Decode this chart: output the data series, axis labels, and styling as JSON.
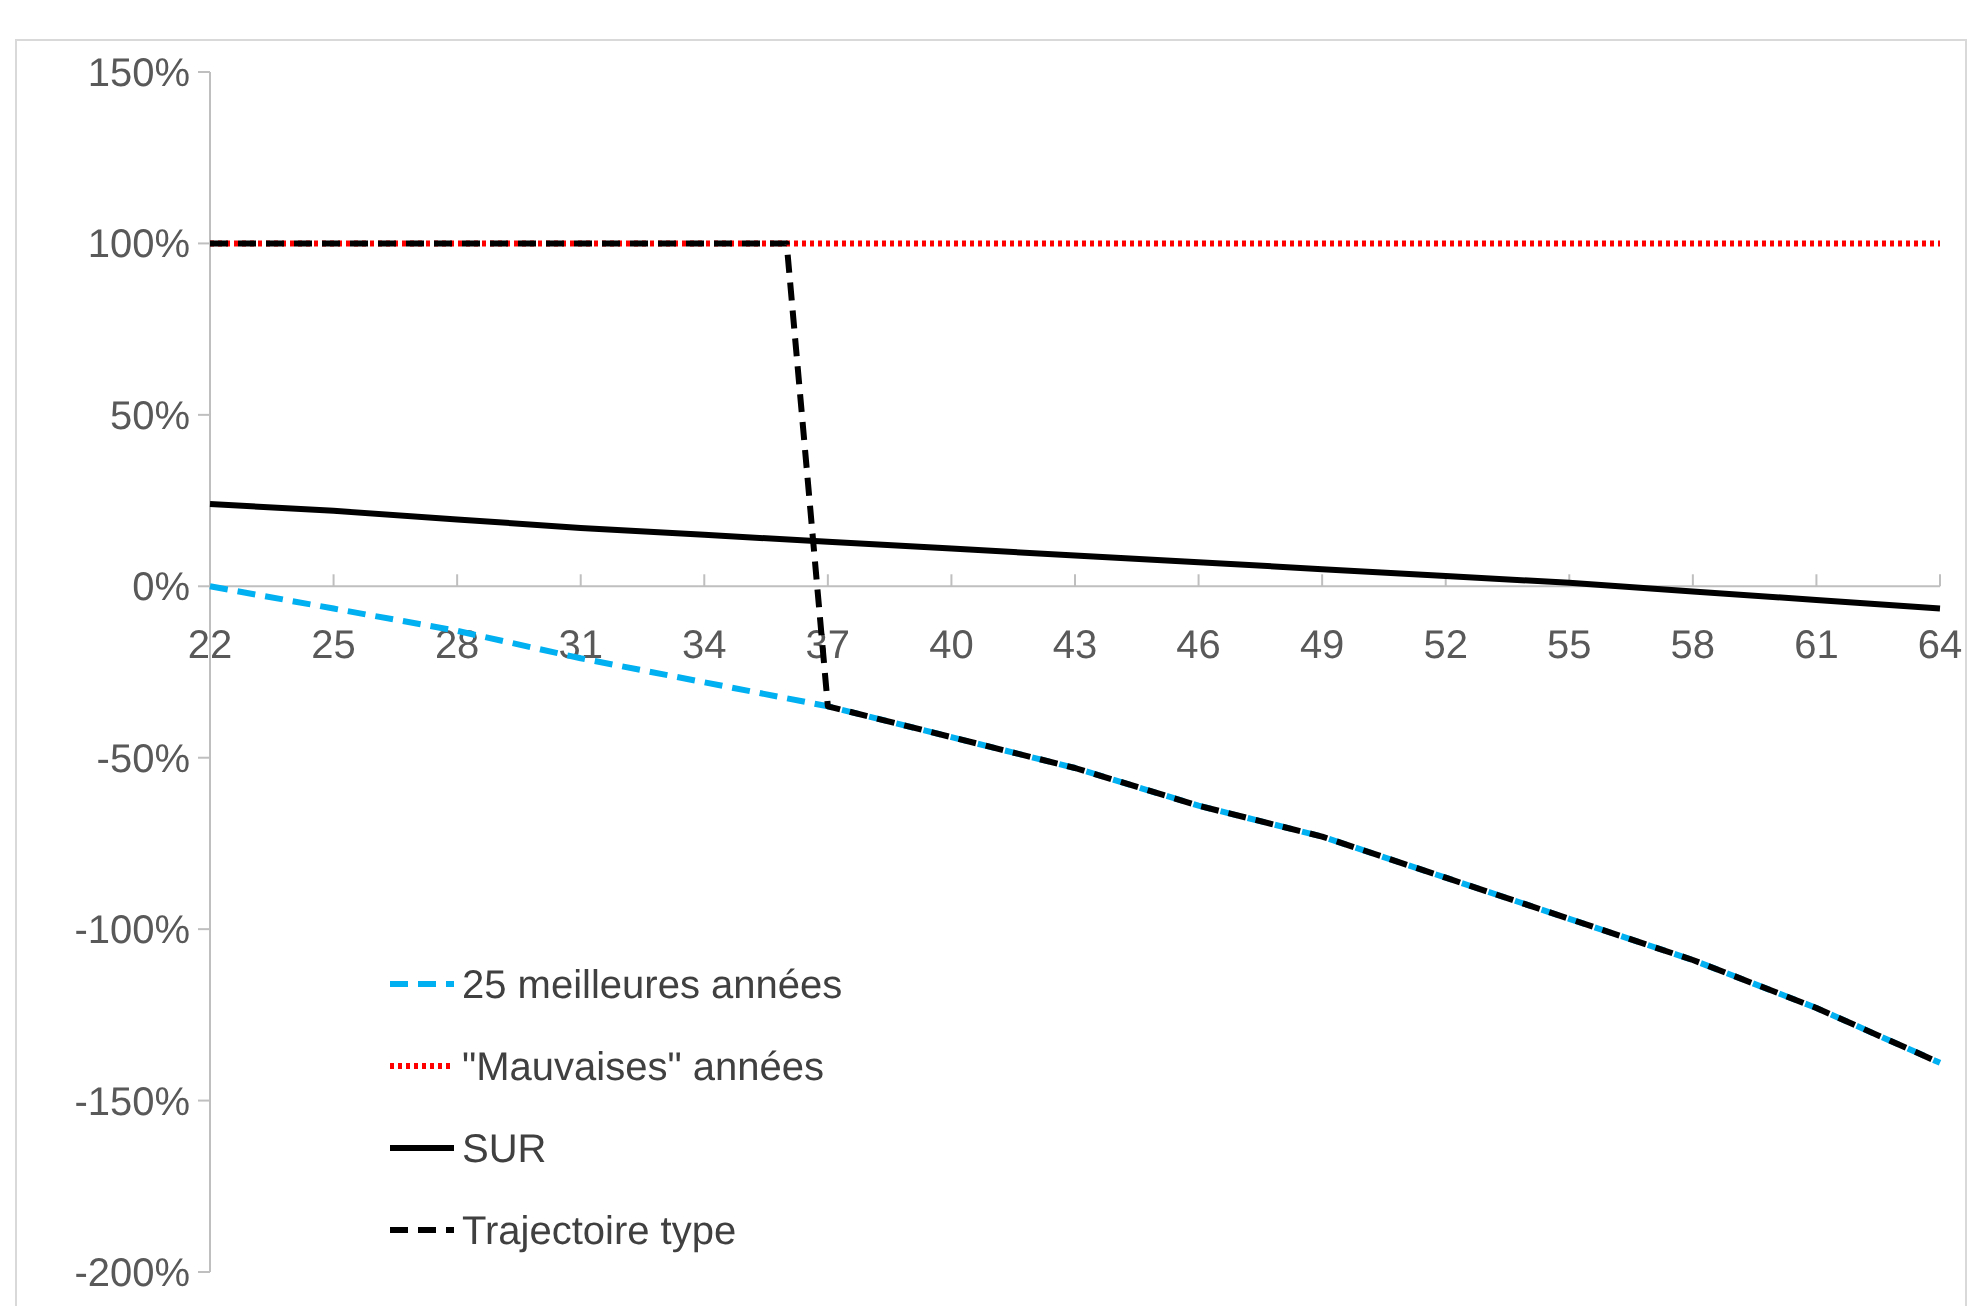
{
  "chart_data": {
    "type": "line",
    "xlim": [
      22,
      64
    ],
    "xticks": [
      22,
      25,
      28,
      31,
      34,
      37,
      40,
      43,
      46,
      49,
      52,
      55,
      58,
      61,
      64
    ],
    "ylim": [
      -200,
      150
    ],
    "yticks": [
      {
        "value": -200,
        "label": "-200%"
      },
      {
        "value": -150,
        "label": "-150%"
      },
      {
        "value": -100,
        "label": "-100%"
      },
      {
        "value": -50,
        "label": "-50%"
      },
      {
        "value": 0,
        "label": "0%"
      },
      {
        "value": 50,
        "label": "50%"
      },
      {
        "value": 100,
        "label": "100%"
      },
      {
        "value": 150,
        "label": "150%"
      }
    ],
    "grid": false,
    "legend": "bottom left",
    "series": [
      {
        "name": "25 meilleures années",
        "color": "#00b0f0",
        "line_style": "dashed",
        "x": [
          22,
          25,
          28,
          31,
          34,
          37,
          40,
          43,
          46,
          49,
          52,
          55,
          58,
          61,
          64
        ],
        "values": [
          0,
          -6.5,
          -13,
          -21,
          -28,
          -35,
          -44,
          -53,
          -64,
          -73,
          -85,
          -97,
          -109,
          -123,
          -139
        ]
      },
      {
        "name": "\"Mauvaises\" années",
        "color": "#ff0000",
        "line_style": "dotted",
        "x": [
          22,
          64
        ],
        "values": [
          100,
          100
        ]
      },
      {
        "name": "SUR",
        "color": "#000000",
        "line_style": "solid",
        "x": [
          22,
          25,
          28,
          31,
          34,
          37,
          40,
          43,
          46,
          49,
          52,
          55,
          58,
          61,
          64
        ],
        "values": [
          24,
          22,
          19.5,
          17,
          15,
          13,
          11,
          9,
          7,
          5,
          3,
          1,
          -1.5,
          -4,
          -6.5
        ]
      },
      {
        "name": "Trajectoire type",
        "color": "#000000",
        "line_style": "dashed",
        "x": [
          22,
          36,
          37,
          40,
          43,
          46,
          49,
          52,
          55,
          58,
          61,
          64
        ],
        "values": [
          100,
          100,
          -35,
          -44,
          -53,
          -64,
          -73,
          -85,
          -97,
          -109,
          -123,
          -139
        ]
      }
    ]
  }
}
